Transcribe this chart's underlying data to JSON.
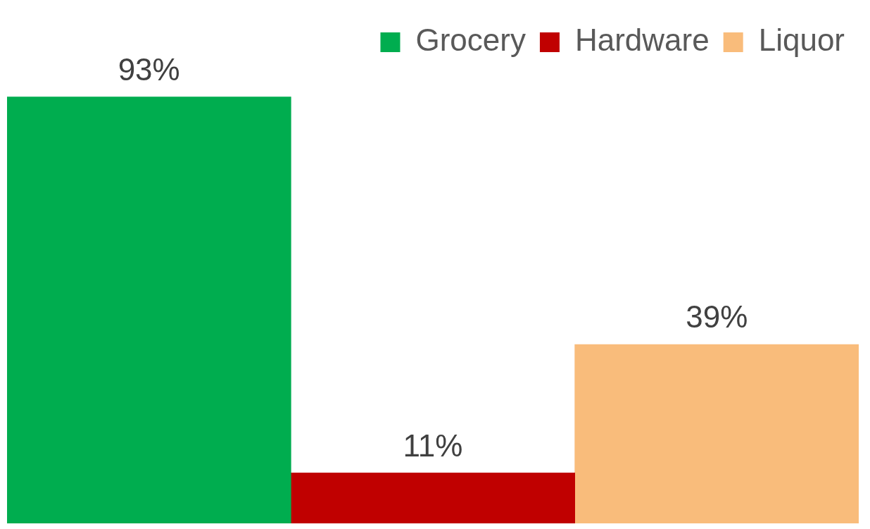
{
  "chart_data": {
    "type": "bar",
    "categories": [
      null
    ],
    "series": [
      {
        "name": "Grocery",
        "color": "#00ad4f",
        "values": [
          93
        ],
        "value_labels": [
          "93%"
        ]
      },
      {
        "name": "Hardware",
        "color": "#c00000",
        "values": [
          11
        ],
        "value_labels": [
          "11%"
        ]
      },
      {
        "name": "Liquor",
        "color": "#f9bc7b",
        "values": [
          39
        ],
        "value_labels": [
          "39%"
        ]
      }
    ],
    "legend": "top right"
  }
}
